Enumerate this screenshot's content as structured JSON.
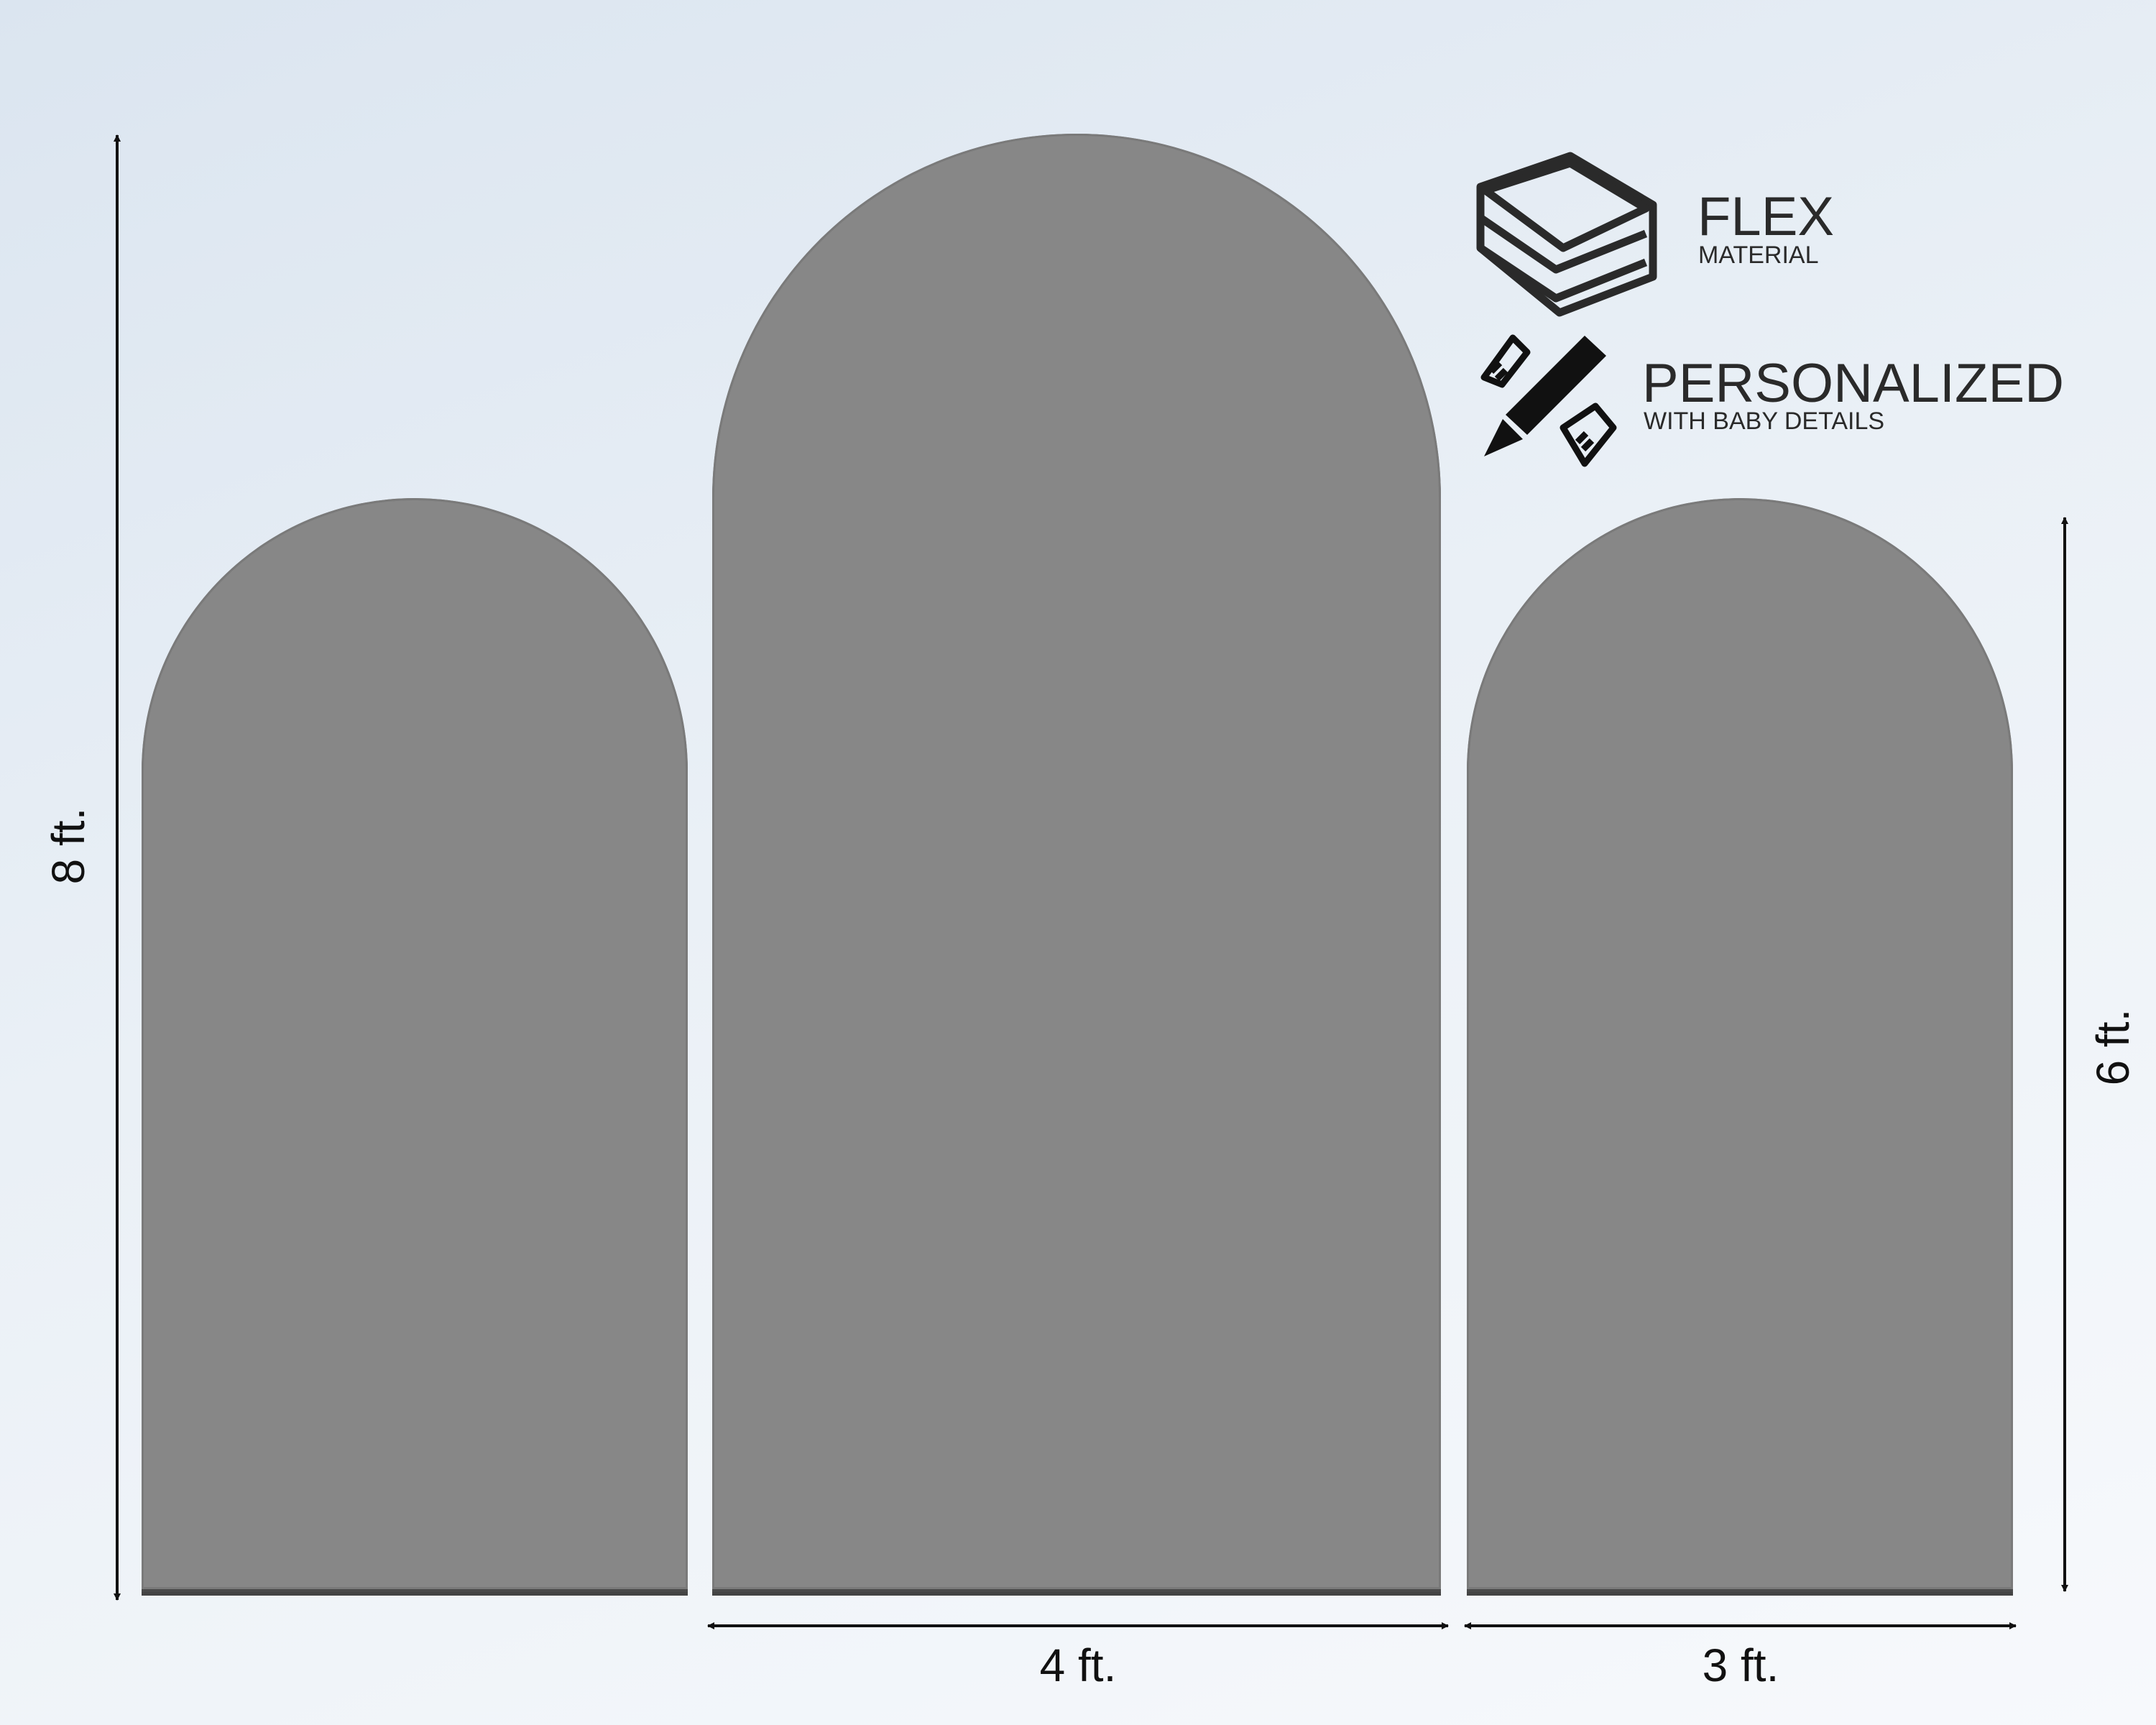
{
  "panels": [
    {
      "name": "left-arch",
      "color": "#878787"
    },
    {
      "name": "center-arch",
      "color": "#878787"
    },
    {
      "name": "right-arch",
      "color": "#878787"
    }
  ],
  "dimensions": {
    "tall_height": "8 ft.",
    "short_height": "6 ft.",
    "center_width": "4 ft.",
    "side_width": "3 ft."
  },
  "features": [
    {
      "icon": "layers-icon",
      "title": "FLEX",
      "subtitle": "MATERIAL"
    },
    {
      "icon": "pencil-ruler-icon",
      "title": "PERSONALIZED",
      "subtitle": "WITH BABY DETAILS"
    }
  ]
}
